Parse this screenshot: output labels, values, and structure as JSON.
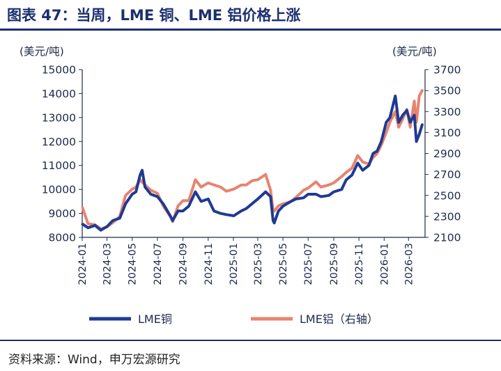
{
  "title": "图表 47：当周，LME 铜、LME 铝价格上涨",
  "source": "资料来源：Wind，申万宏源研究",
  "chart_data": {
    "type": "line",
    "left_unit": "(美元/吨)",
    "right_unit": "(美元/吨)",
    "x_ticks": [
      "2024-01",
      "2024-03",
      "2024-05",
      "2024-07",
      "2024-09",
      "2024-11",
      "2025-01",
      "2025-03",
      "2025-05",
      "2025-07",
      "2025-09",
      "2025-11",
      "2026-01",
      "2026-03"
    ],
    "y_left": {
      "ticks": [
        8000,
        9000,
        10000,
        11000,
        12000,
        13000,
        14000,
        15000
      ],
      "range": [
        8000,
        15000
      ]
    },
    "y_right": {
      "ticks": [
        2100,
        2300,
        2500,
        2700,
        2900,
        3100,
        3300,
        3500,
        3700
      ],
      "range": [
        2100,
        3700
      ]
    },
    "series": [
      {
        "name": "LME铜",
        "axis": "left",
        "color": "#1f3a93",
        "points": [
          [
            "2024-01-02",
            8550
          ],
          [
            "2024-01-15",
            8400
          ],
          [
            "2024-02-01",
            8500
          ],
          [
            "2024-02-15",
            8300
          ],
          [
            "2024-03-01",
            8450
          ],
          [
            "2024-03-15",
            8700
          ],
          [
            "2024-04-01",
            8800
          ],
          [
            "2024-04-15",
            9400
          ],
          [
            "2024-05-01",
            9800
          ],
          [
            "2024-05-10",
            9900
          ],
          [
            "2024-05-20",
            10600
          ],
          [
            "2024-05-25",
            10800
          ],
          [
            "2024-06-01",
            10100
          ],
          [
            "2024-06-15",
            9800
          ],
          [
            "2024-07-01",
            9700
          ],
          [
            "2024-07-15",
            9400
          ],
          [
            "2024-08-01",
            8900
          ],
          [
            "2024-08-07",
            8700
          ],
          [
            "2024-08-20",
            9100
          ],
          [
            "2024-09-01",
            9100
          ],
          [
            "2024-09-15",
            9300
          ],
          [
            "2024-10-01",
            9900
          ],
          [
            "2024-10-15",
            9500
          ],
          [
            "2024-11-01",
            9600
          ],
          [
            "2024-11-15",
            9100
          ],
          [
            "2024-12-01",
            9000
          ],
          [
            "2024-12-15",
            8950
          ],
          [
            "2025-01-02",
            8900
          ],
          [
            "2025-01-20",
            9100
          ],
          [
            "2025-02-01",
            9200
          ],
          [
            "2025-02-15",
            9400
          ],
          [
            "2025-03-01",
            9600
          ],
          [
            "2025-03-20",
            9900
          ],
          [
            "2025-04-01",
            9700
          ],
          [
            "2025-04-07",
            8700
          ],
          [
            "2025-04-10",
            8600
          ],
          [
            "2025-04-20",
            9100
          ],
          [
            "2025-05-01",
            9300
          ],
          [
            "2025-05-20",
            9500
          ],
          [
            "2025-06-01",
            9600
          ],
          [
            "2025-06-20",
            9650
          ],
          [
            "2025-07-01",
            9800
          ],
          [
            "2025-07-20",
            9800
          ],
          [
            "2025-08-01",
            9700
          ],
          [
            "2025-08-20",
            9750
          ],
          [
            "2025-09-01",
            9900
          ],
          [
            "2025-09-20",
            10000
          ],
          [
            "2025-10-01",
            10400
          ],
          [
            "2025-10-15",
            10600
          ],
          [
            "2025-10-29",
            11100
          ],
          [
            "2025-11-10",
            10800
          ],
          [
            "2025-11-25",
            11000
          ],
          [
            "2025-12-05",
            11500
          ],
          [
            "2025-12-15",
            11600
          ],
          [
            "2025-12-25",
            12000
          ],
          [
            "2026-01-06",
            12800
          ],
          [
            "2026-01-15",
            13000
          ],
          [
            "2026-01-28",
            13900
          ],
          [
            "2026-02-05",
            12800
          ],
          [
            "2026-02-15",
            13100
          ],
          [
            "2026-02-25",
            13300
          ],
          [
            "2026-03-05",
            12800
          ],
          [
            "2026-03-15",
            13100
          ],
          [
            "2026-03-20",
            12000
          ],
          [
            "2026-03-27",
            12300
          ],
          [
            "2026-04-03",
            12700
          ]
        ]
      },
      {
        "name": "LME铝（右轴）",
        "axis": "right",
        "color": "#e8836f",
        "points": [
          [
            "2024-01-02",
            2380
          ],
          [
            "2024-01-15",
            2230
          ],
          [
            "2024-02-01",
            2220
          ],
          [
            "2024-02-15",
            2180
          ],
          [
            "2024-03-01",
            2200
          ],
          [
            "2024-03-15",
            2240
          ],
          [
            "2024-04-01",
            2300
          ],
          [
            "2024-04-15",
            2500
          ],
          [
            "2024-05-01",
            2560
          ],
          [
            "2024-05-10",
            2580
          ],
          [
            "2024-05-20",
            2650
          ],
          [
            "2024-06-01",
            2600
          ],
          [
            "2024-06-15",
            2550
          ],
          [
            "2024-07-01",
            2520
          ],
          [
            "2024-07-15",
            2400
          ],
          [
            "2024-08-01",
            2300
          ],
          [
            "2024-08-07",
            2250
          ],
          [
            "2024-08-20",
            2400
          ],
          [
            "2024-09-01",
            2450
          ],
          [
            "2024-09-15",
            2450
          ],
          [
            "2024-10-01",
            2650
          ],
          [
            "2024-10-15",
            2580
          ],
          [
            "2024-11-01",
            2620
          ],
          [
            "2024-11-15",
            2600
          ],
          [
            "2024-12-01",
            2580
          ],
          [
            "2024-12-15",
            2540
          ],
          [
            "2025-01-02",
            2560
          ],
          [
            "2025-01-20",
            2600
          ],
          [
            "2025-02-01",
            2600
          ],
          [
            "2025-02-15",
            2640
          ],
          [
            "2025-03-01",
            2650
          ],
          [
            "2025-03-20",
            2700
          ],
          [
            "2025-04-01",
            2550
          ],
          [
            "2025-04-07",
            2360
          ],
          [
            "2025-04-10",
            2350
          ],
          [
            "2025-04-20",
            2400
          ],
          [
            "2025-05-01",
            2420
          ],
          [
            "2025-05-20",
            2440
          ],
          [
            "2025-06-01",
            2480
          ],
          [
            "2025-06-20",
            2550
          ],
          [
            "2025-07-01",
            2570
          ],
          [
            "2025-07-20",
            2630
          ],
          [
            "2025-08-01",
            2580
          ],
          [
            "2025-08-20",
            2600
          ],
          [
            "2025-09-01",
            2620
          ],
          [
            "2025-09-20",
            2680
          ],
          [
            "2025-10-01",
            2720
          ],
          [
            "2025-10-15",
            2760
          ],
          [
            "2025-10-29",
            2880
          ],
          [
            "2025-11-10",
            2820
          ],
          [
            "2025-11-25",
            2800
          ],
          [
            "2025-12-05",
            2860
          ],
          [
            "2025-12-15",
            2900
          ],
          [
            "2025-12-25",
            2980
          ],
          [
            "2026-01-06",
            3100
          ],
          [
            "2026-01-15",
            3200
          ],
          [
            "2026-01-28",
            3300
          ],
          [
            "2026-02-05",
            3150
          ],
          [
            "2026-02-15",
            3230
          ],
          [
            "2026-02-25",
            3320
          ],
          [
            "2026-03-05",
            3150
          ],
          [
            "2026-03-15",
            3400
          ],
          [
            "2026-03-20",
            3200
          ],
          [
            "2026-03-27",
            3450
          ],
          [
            "2026-04-03",
            3500
          ]
        ]
      }
    ],
    "legend": [
      {
        "label": "LME铜",
        "color": "#1f3a93"
      },
      {
        "label": "LME铝（右轴）",
        "color": "#e8836f"
      }
    ],
    "legend_position": "bottom",
    "grid": false
  }
}
